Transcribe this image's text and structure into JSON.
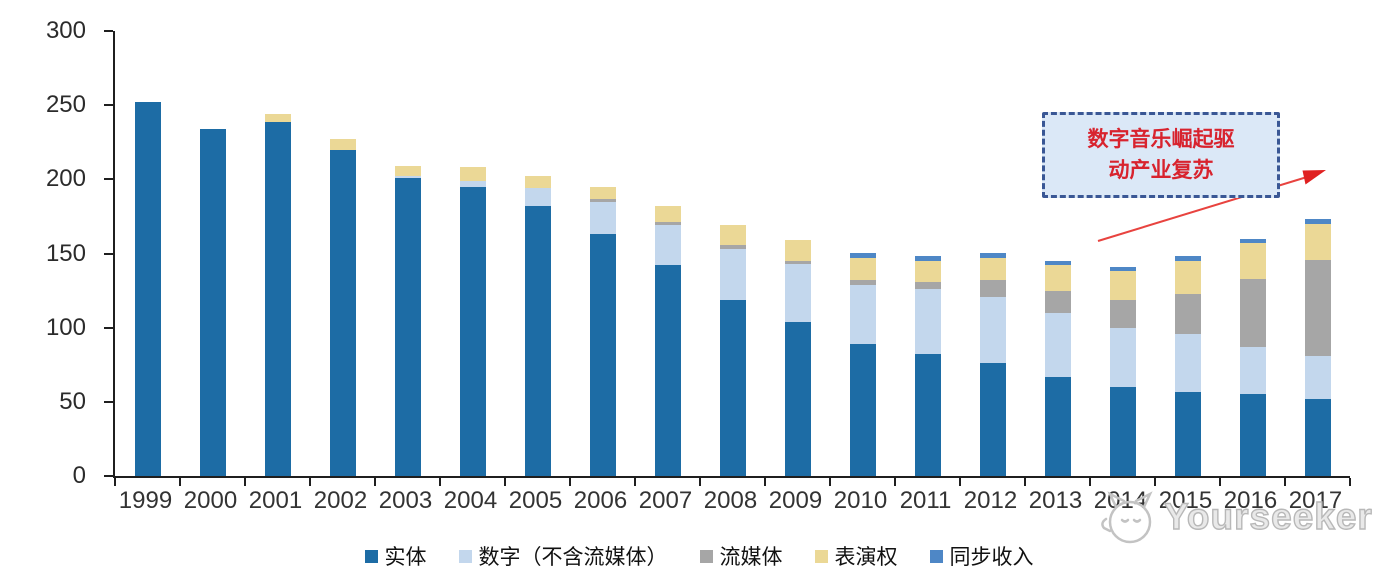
{
  "chart_data": {
    "type": "bar",
    "stacked": true,
    "title": "",
    "xlabel": "",
    "ylabel": "",
    "ylim": [
      0,
      300
    ],
    "yticks": [
      0,
      50,
      100,
      150,
      200,
      250,
      300
    ],
    "grid": false,
    "legend_position": "bottom",
    "categories": [
      "1999",
      "2000",
      "2001",
      "2002",
      "2003",
      "2004",
      "2005",
      "2006",
      "2007",
      "2008",
      "2009",
      "2010",
      "2011",
      "2012",
      "2013",
      "2014",
      "2015",
      "2016",
      "2017"
    ],
    "series": [
      {
        "name": "实体",
        "color": "#1d6ca5",
        "values": [
          252,
          234,
          239,
          220,
          201,
          195,
          182,
          163,
          142,
          119,
          104,
          89,
          82,
          76,
          67,
          60,
          57,
          55,
          52
        ]
      },
      {
        "name": "数字（不含流媒体）",
        "color": "#c3d7ed",
        "values": [
          0,
          0,
          0,
          0,
          1,
          4,
          12,
          22,
          27,
          34,
          39,
          40,
          44,
          45,
          43,
          40,
          39,
          32,
          29
        ]
      },
      {
        "name": "流媒体",
        "color": "#a6a6a6",
        "values": [
          0,
          0,
          0,
          0,
          0,
          0,
          0,
          2,
          2,
          3,
          2,
          3,
          5,
          11,
          15,
          19,
          27,
          46,
          65
        ]
      },
      {
        "name": "表演权",
        "color": "#ebd896",
        "values": [
          0,
          0,
          5,
          7,
          7,
          9,
          8,
          8,
          11,
          13,
          14,
          15,
          14,
          15,
          17,
          19,
          22,
          24,
          24
        ]
      },
      {
        "name": "同步收入",
        "color": "#4e87c6",
        "values": [
          0,
          0,
          0,
          0,
          0,
          0,
          0,
          0,
          0,
          0,
          0,
          3,
          3,
          3,
          3,
          3,
          3,
          3,
          3
        ]
      }
    ]
  },
  "annotation": {
    "line1": "数字音乐崛起驱",
    "line2": "动产业复苏",
    "text_color": "#d8232e",
    "box_border_color": "#3a5795",
    "box_fill_color": "#dbe8f7",
    "arrow_color": "#e8433f"
  },
  "watermark": {
    "text": "Yourseeker",
    "icon": "cat-logo",
    "color": "#bdbdbd"
  },
  "axis": {
    "line_color": "#1f1f1f",
    "label_color": "#333333"
  }
}
